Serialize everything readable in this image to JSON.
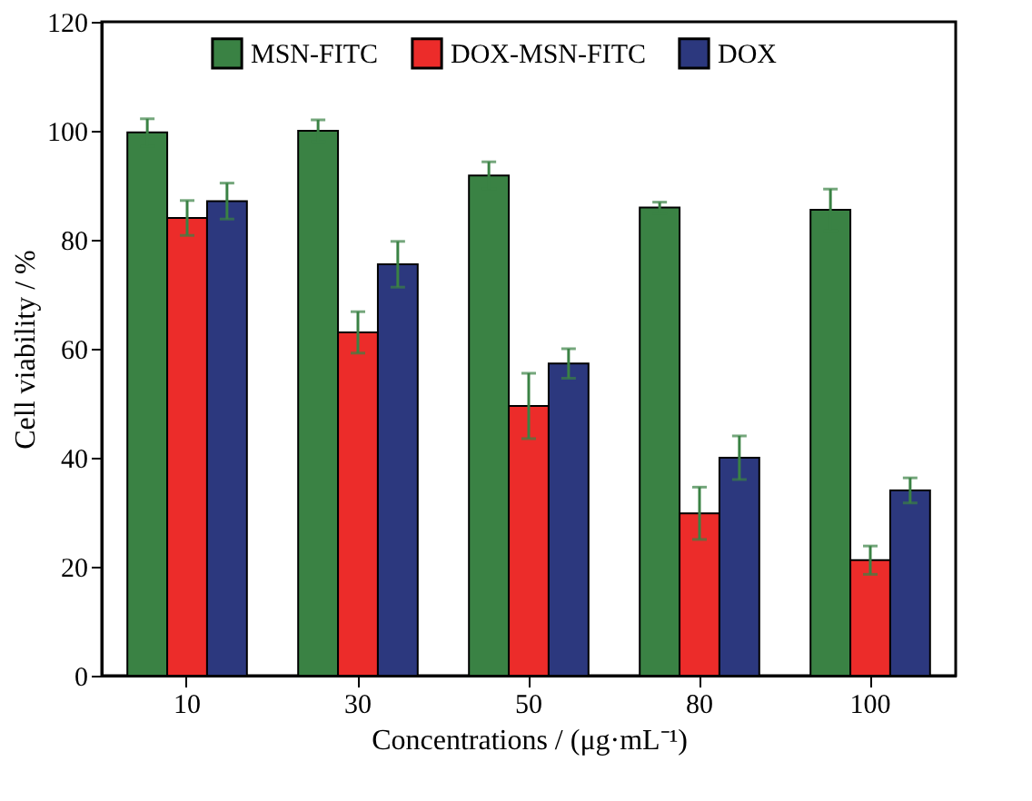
{
  "chart_data": {
    "type": "bar",
    "xlabel": "Concentrations / (μg·mL⁻¹)",
    "ylabel": "Cell viability / %",
    "categories": [
      "10",
      "30",
      "50",
      "80",
      "100"
    ],
    "series": [
      {
        "name": "MSN-FITC",
        "color": "#3a8244",
        "values": [
          99.7,
          100,
          91.8,
          85.9,
          85.5
        ],
        "errors": [
          2.5,
          2,
          2.5,
          1,
          3.8
        ]
      },
      {
        "name": "DOX-MSN-FITC",
        "color": "#ec2c2a",
        "values": [
          84,
          63,
          49.5,
          29.8,
          21.2
        ],
        "errors": [
          3.2,
          3.8,
          6,
          4.8,
          2.6
        ]
      },
      {
        "name": "DOX",
        "color": "#2c387e",
        "values": [
          87.1,
          75.5,
          57.3,
          40,
          34
        ],
        "errors": [
          3.3,
          4.2,
          2.7,
          4,
          2.3
        ]
      }
    ],
    "ylim": [
      0,
      120
    ],
    "yticks": [
      0,
      20,
      40,
      60,
      80,
      100,
      120
    ],
    "grid": false,
    "legend": "top"
  }
}
